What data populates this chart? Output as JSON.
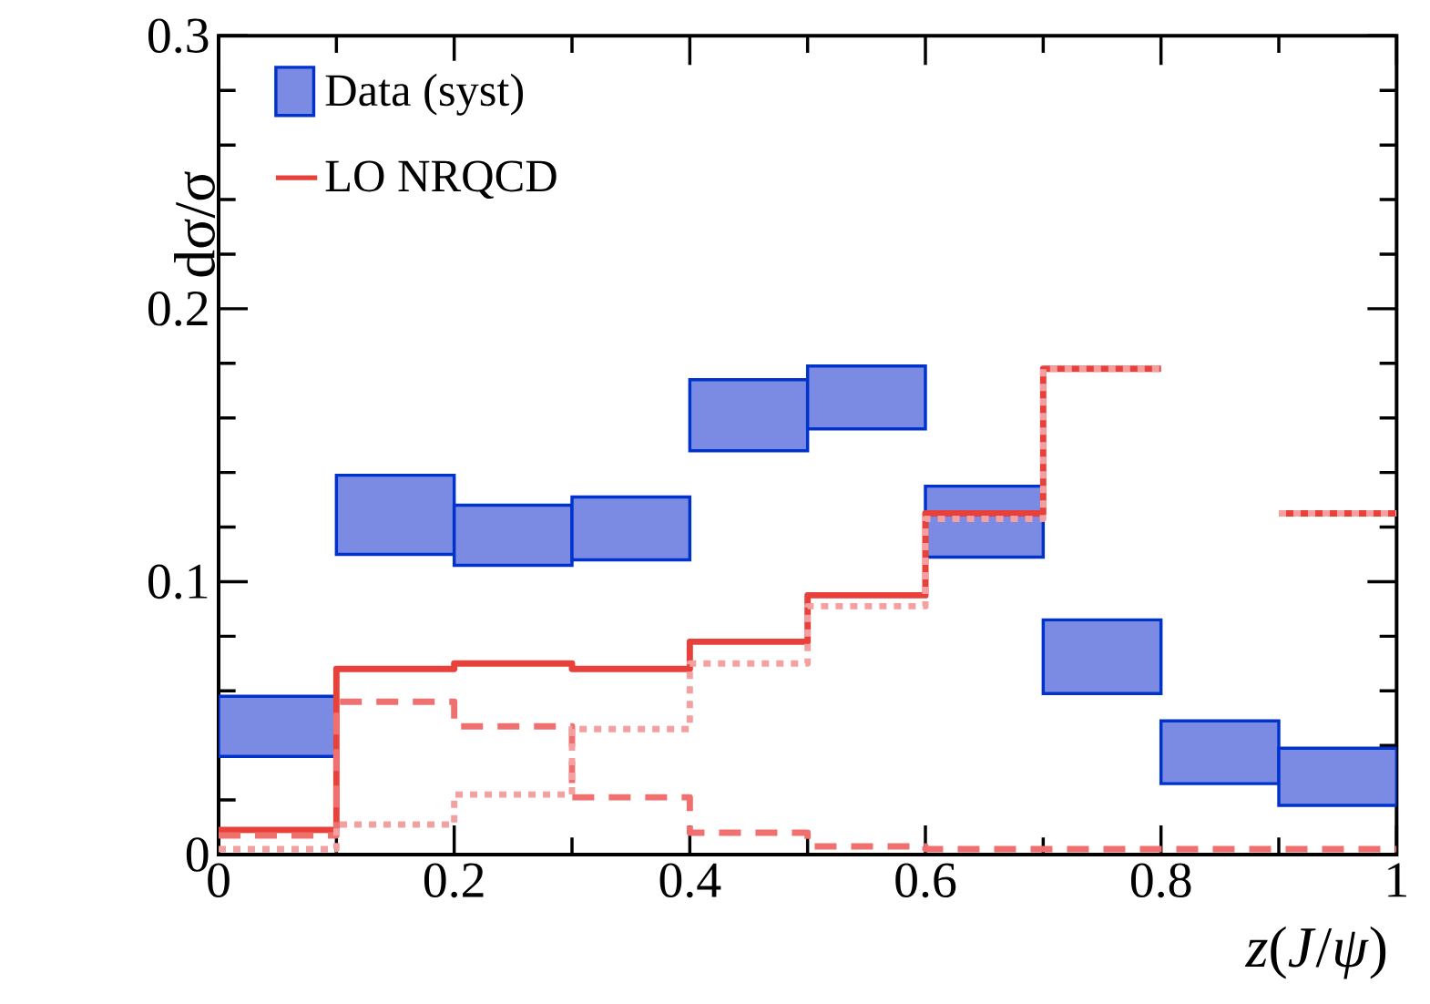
{
  "chart_data": {
    "type": "step",
    "xlabel": "*z*(*J*/*ψ*)",
    "ylabel": "dσ/σ",
    "x": [
      0.05,
      0.15,
      0.25,
      0.35,
      0.45,
      0.55,
      0.65,
      0.75,
      0.85,
      0.95
    ],
    "series": [
      {
        "name": "Data (syst)",
        "type": "bar",
        "color": "#7b8be3",
        "base": [
          0.036,
          0.11,
          0.106,
          0.108,
          0.148,
          0.156,
          0.109,
          0.059,
          0.026,
          0.018
        ],
        "values": [
          0.022,
          0.029,
          0.022,
          0.023,
          0.026,
          0.023,
          0.026,
          0.027,
          0.023,
          0.021
        ]
      },
      {
        "name": "LO NRQCD",
        "color": "#e8403a",
        "line_style": "solid",
        "x": [
          0,
          0.1,
          0.2,
          0.3,
          0.4,
          0.5,
          0.6,
          0.7,
          0.8,
          0.9,
          1
        ],
        "values": [
          0.009,
          0.068,
          0.07,
          0.068,
          0.078,
          0.095,
          0.125,
          0.178,
          null,
          0.125,
          0.125
        ]
      },
      {
        "color": "#f07070",
        "line_style": "dashed",
        "x": [
          0,
          0.1,
          0.2,
          0.3,
          0.4,
          0.5,
          0.6,
          0.7,
          0.8,
          0.9,
          1
        ],
        "values": [
          0.007,
          0.056,
          0.047,
          0.021,
          0.008,
          0.003,
          0.002,
          0.002,
          0.002,
          0.002,
          0.002
        ]
      },
      {
        "color": "#f4a0a0",
        "line_style": "dotted",
        "x": [
          0,
          0.1,
          0.2,
          0.3,
          0.4,
          0.5,
          0.6,
          0.7,
          0.8,
          0.9,
          1
        ],
        "values": [
          0.002,
          0.011,
          0.022,
          0.046,
          0.07,
          0.091,
          0.123,
          0.178,
          null,
          0.125,
          0.125
        ]
      }
    ],
    "xlim": [
      0,
      1
    ],
    "ylim": [
      0,
      0.3
    ],
    "xticks": [
      0,
      0.2,
      0.4,
      0.6,
      0.8,
      1
    ],
    "yticks": [
      0,
      0.1,
      0.2,
      0.3
    ],
    "legend": "top left",
    "grid": false
  }
}
